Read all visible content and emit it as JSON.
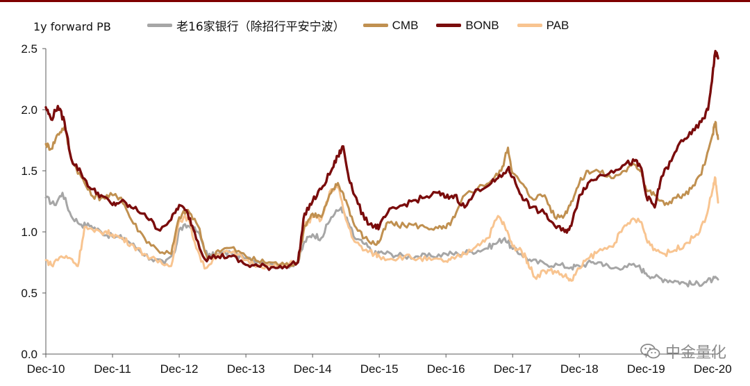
{
  "chart_data": {
    "type": "line",
    "ylabel": "1y forward PB",
    "ylim": [
      0,
      2.5
    ],
    "yticks": [
      "0.0",
      "0.5",
      "1.0",
      "1.5",
      "2.0",
      "2.5"
    ],
    "ytick_values": [
      0,
      0.5,
      1.0,
      1.5,
      2.0,
      2.5
    ],
    "xlim": [
      2010.92,
      2021.0
    ],
    "xticks": [
      "Dec-10",
      "Dec-11",
      "Dec-12",
      "Dec-13",
      "Dec-14",
      "Dec-15",
      "Dec-16",
      "Dec-17",
      "Dec-18",
      "Dec-19",
      "Dec-20"
    ],
    "xtick_values": [
      2010.92,
      2011.92,
      2012.92,
      2013.92,
      2014.92,
      2015.92,
      2016.92,
      2017.92,
      2018.92,
      2019.92,
      2020.92
    ],
    "grid": false,
    "legend_position": "top",
    "series": [
      {
        "name": "老16家银行（除招行平安宁波）",
        "color": "#a6a6a6",
        "points": [
          [
            2010.92,
            1.28
          ],
          [
            2011.05,
            1.22
          ],
          [
            2011.17,
            1.32
          ],
          [
            2011.3,
            1.13
          ],
          [
            2011.45,
            1.06
          ],
          [
            2011.6,
            1.05
          ],
          [
            2011.75,
            1.0
          ],
          [
            2011.92,
            0.96
          ],
          [
            2012.1,
            0.95
          ],
          [
            2012.3,
            0.86
          ],
          [
            2012.5,
            0.78
          ],
          [
            2012.7,
            0.74
          ],
          [
            2012.85,
            0.83
          ],
          [
            2012.92,
            1.02
          ],
          [
            2013.05,
            1.05
          ],
          [
            2013.2,
            1.0
          ],
          [
            2013.35,
            0.8
          ],
          [
            2013.5,
            0.82
          ],
          [
            2013.7,
            0.83
          ],
          [
            2013.92,
            0.78
          ],
          [
            2014.1,
            0.76
          ],
          [
            2014.3,
            0.74
          ],
          [
            2014.5,
            0.72
          ],
          [
            2014.7,
            0.75
          ],
          [
            2014.8,
            0.92
          ],
          [
            2014.92,
            0.98
          ],
          [
            2015.05,
            0.95
          ],
          [
            2015.2,
            1.12
          ],
          [
            2015.35,
            1.2
          ],
          [
            2015.45,
            1.08
          ],
          [
            2015.55,
            0.95
          ],
          [
            2015.7,
            0.9
          ],
          [
            2015.85,
            0.82
          ],
          [
            2015.92,
            0.83
          ],
          [
            2016.1,
            0.82
          ],
          [
            2016.3,
            0.8
          ],
          [
            2016.5,
            0.8
          ],
          [
            2016.7,
            0.8
          ],
          [
            2016.92,
            0.82
          ],
          [
            2017.1,
            0.82
          ],
          [
            2017.3,
            0.84
          ],
          [
            2017.5,
            0.86
          ],
          [
            2017.65,
            0.9
          ],
          [
            2017.8,
            0.95
          ],
          [
            2017.92,
            0.86
          ],
          [
            2018.05,
            0.82
          ],
          [
            2018.2,
            0.76
          ],
          [
            2018.4,
            0.74
          ],
          [
            2018.6,
            0.73
          ],
          [
            2018.8,
            0.71
          ],
          [
            2018.92,
            0.72
          ],
          [
            2019.1,
            0.75
          ],
          [
            2019.25,
            0.75
          ],
          [
            2019.4,
            0.7
          ],
          [
            2019.6,
            0.72
          ],
          [
            2019.8,
            0.72
          ],
          [
            2019.92,
            0.66
          ],
          [
            2020.05,
            0.63
          ],
          [
            2020.2,
            0.61
          ],
          [
            2020.35,
            0.6
          ],
          [
            2020.5,
            0.58
          ],
          [
            2020.65,
            0.57
          ],
          [
            2020.8,
            0.59
          ],
          [
            2020.92,
            0.61
          ],
          [
            2021.0,
            0.61
          ]
        ]
      },
      {
        "name": "CMB",
        "color": "#c09050",
        "points": [
          [
            2010.92,
            1.72
          ],
          [
            2011.0,
            1.68
          ],
          [
            2011.1,
            1.8
          ],
          [
            2011.2,
            1.86
          ],
          [
            2011.3,
            1.6
          ],
          [
            2011.45,
            1.45
          ],
          [
            2011.6,
            1.3
          ],
          [
            2011.75,
            1.28
          ],
          [
            2011.92,
            1.3
          ],
          [
            2012.05,
            1.28
          ],
          [
            2012.2,
            1.1
          ],
          [
            2012.4,
            0.95
          ],
          [
            2012.6,
            0.85
          ],
          [
            2012.8,
            0.82
          ],
          [
            2012.92,
            1.12
          ],
          [
            2013.05,
            1.18
          ],
          [
            2013.2,
            1.05
          ],
          [
            2013.35,
            0.77
          ],
          [
            2013.5,
            0.85
          ],
          [
            2013.7,
            0.87
          ],
          [
            2013.92,
            0.8
          ],
          [
            2014.1,
            0.76
          ],
          [
            2014.3,
            0.75
          ],
          [
            2014.5,
            0.73
          ],
          [
            2014.7,
            0.75
          ],
          [
            2014.8,
            1.05
          ],
          [
            2014.92,
            1.15
          ],
          [
            2015.05,
            1.12
          ],
          [
            2015.2,
            1.32
          ],
          [
            2015.3,
            1.4
          ],
          [
            2015.42,
            1.26
          ],
          [
            2015.55,
            1.05
          ],
          [
            2015.7,
            0.95
          ],
          [
            2015.85,
            0.9
          ],
          [
            2015.92,
            0.92
          ],
          [
            2016.05,
            1.08
          ],
          [
            2016.2,
            1.05
          ],
          [
            2016.4,
            1.06
          ],
          [
            2016.6,
            1.04
          ],
          [
            2016.8,
            1.03
          ],
          [
            2016.92,
            1.03
          ],
          [
            2017.05,
            1.12
          ],
          [
            2017.2,
            1.3
          ],
          [
            2017.4,
            1.36
          ],
          [
            2017.6,
            1.42
          ],
          [
            2017.75,
            1.5
          ],
          [
            2017.85,
            1.69
          ],
          [
            2017.92,
            1.48
          ],
          [
            2018.05,
            1.4
          ],
          [
            2018.2,
            1.28
          ],
          [
            2018.4,
            1.3
          ],
          [
            2018.55,
            1.12
          ],
          [
            2018.7,
            1.14
          ],
          [
            2018.8,
            1.25
          ],
          [
            2018.92,
            1.4
          ],
          [
            2019.05,
            1.5
          ],
          [
            2019.2,
            1.5
          ],
          [
            2019.4,
            1.44
          ],
          [
            2019.6,
            1.5
          ],
          [
            2019.75,
            1.55
          ],
          [
            2019.85,
            1.5
          ],
          [
            2019.92,
            1.35
          ],
          [
            2020.05,
            1.3
          ],
          [
            2020.2,
            1.22
          ],
          [
            2020.35,
            1.28
          ],
          [
            2020.5,
            1.3
          ],
          [
            2020.65,
            1.38
          ],
          [
            2020.8,
            1.55
          ],
          [
            2020.92,
            1.8
          ],
          [
            2020.96,
            1.9
          ],
          [
            2021.0,
            1.76
          ]
        ]
      },
      {
        "name": "BONB",
        "color": "#7a0c0c",
        "points": [
          [
            2010.92,
            2.02
          ],
          [
            2011.0,
            1.92
          ],
          [
            2011.1,
            2.03
          ],
          [
            2011.2,
            1.9
          ],
          [
            2011.3,
            1.6
          ],
          [
            2011.45,
            1.48
          ],
          [
            2011.6,
            1.35
          ],
          [
            2011.75,
            1.3
          ],
          [
            2011.92,
            1.22
          ],
          [
            2012.05,
            1.25
          ],
          [
            2012.2,
            1.2
          ],
          [
            2012.4,
            1.15
          ],
          [
            2012.6,
            1.02
          ],
          [
            2012.8,
            1.1
          ],
          [
            2012.92,
            1.22
          ],
          [
            2013.05,
            1.15
          ],
          [
            2013.15,
            1.0
          ],
          [
            2013.3,
            0.78
          ],
          [
            2013.5,
            0.8
          ],
          [
            2013.7,
            0.8
          ],
          [
            2013.92,
            0.73
          ],
          [
            2014.1,
            0.72
          ],
          [
            2014.3,
            0.71
          ],
          [
            2014.5,
            0.72
          ],
          [
            2014.7,
            0.75
          ],
          [
            2014.8,
            1.15
          ],
          [
            2014.92,
            1.25
          ],
          [
            2015.05,
            1.35
          ],
          [
            2015.2,
            1.5
          ],
          [
            2015.3,
            1.62
          ],
          [
            2015.38,
            1.7
          ],
          [
            2015.45,
            1.48
          ],
          [
            2015.55,
            1.3
          ],
          [
            2015.7,
            1.1
          ],
          [
            2015.85,
            1.05
          ],
          [
            2015.92,
            1.04
          ],
          [
            2016.05,
            1.16
          ],
          [
            2016.2,
            1.2
          ],
          [
            2016.4,
            1.25
          ],
          [
            2016.6,
            1.28
          ],
          [
            2016.8,
            1.32
          ],
          [
            2016.92,
            1.28
          ],
          [
            2017.05,
            1.3
          ],
          [
            2017.2,
            1.2
          ],
          [
            2017.4,
            1.35
          ],
          [
            2017.6,
            1.4
          ],
          [
            2017.75,
            1.45
          ],
          [
            2017.85,
            1.52
          ],
          [
            2017.92,
            1.45
          ],
          [
            2018.05,
            1.3
          ],
          [
            2018.2,
            1.2
          ],
          [
            2018.4,
            1.15
          ],
          [
            2018.55,
            1.05
          ],
          [
            2018.7,
            1.0
          ],
          [
            2018.8,
            1.05
          ],
          [
            2018.92,
            1.3
          ],
          [
            2019.05,
            1.4
          ],
          [
            2019.2,
            1.45
          ],
          [
            2019.4,
            1.5
          ],
          [
            2019.6,
            1.55
          ],
          [
            2019.75,
            1.58
          ],
          [
            2019.85,
            1.52
          ],
          [
            2019.92,
            1.3
          ],
          [
            2020.05,
            1.2
          ],
          [
            2020.15,
            1.45
          ],
          [
            2020.3,
            1.58
          ],
          [
            2020.45,
            1.75
          ],
          [
            2020.6,
            1.8
          ],
          [
            2020.75,
            1.9
          ],
          [
            2020.85,
            2.0
          ],
          [
            2020.92,
            2.3
          ],
          [
            2020.96,
            2.48
          ],
          [
            2021.0,
            2.42
          ]
        ]
      },
      {
        "name": "PAB",
        "color": "#f8c490",
        "points": [
          [
            2010.92,
            0.77
          ],
          [
            2011.0,
            0.73
          ],
          [
            2011.15,
            0.8
          ],
          [
            2011.3,
            0.78
          ],
          [
            2011.4,
            0.72
          ],
          [
            2011.5,
            1.04
          ],
          [
            2011.65,
            1.0
          ],
          [
            2011.8,
            1.0
          ],
          [
            2011.92,
            0.98
          ],
          [
            2012.05,
            0.95
          ],
          [
            2012.2,
            0.9
          ],
          [
            2012.4,
            0.82
          ],
          [
            2012.6,
            0.75
          ],
          [
            2012.8,
            0.72
          ],
          [
            2012.92,
            1.1
          ],
          [
            2013.05,
            1.12
          ],
          [
            2013.15,
            0.92
          ],
          [
            2013.3,
            0.7
          ],
          [
            2013.5,
            0.82
          ],
          [
            2013.7,
            0.83
          ],
          [
            2013.92,
            0.77
          ],
          [
            2014.1,
            0.73
          ],
          [
            2014.3,
            0.72
          ],
          [
            2014.5,
            0.72
          ],
          [
            2014.7,
            0.76
          ],
          [
            2014.8,
            1.05
          ],
          [
            2014.92,
            1.12
          ],
          [
            2015.05,
            1.1
          ],
          [
            2015.2,
            1.35
          ],
          [
            2015.3,
            1.37
          ],
          [
            2015.42,
            1.1
          ],
          [
            2015.55,
            0.92
          ],
          [
            2015.7,
            0.85
          ],
          [
            2015.85,
            0.82
          ],
          [
            2015.92,
            0.8
          ],
          [
            2016.1,
            0.78
          ],
          [
            2016.3,
            0.8
          ],
          [
            2016.5,
            0.78
          ],
          [
            2016.7,
            0.77
          ],
          [
            2016.92,
            0.76
          ],
          [
            2017.05,
            0.78
          ],
          [
            2017.2,
            0.82
          ],
          [
            2017.4,
            0.9
          ],
          [
            2017.55,
            0.95
          ],
          [
            2017.7,
            1.13
          ],
          [
            2017.8,
            1.05
          ],
          [
            2017.92,
            0.88
          ],
          [
            2018.05,
            0.85
          ],
          [
            2018.15,
            0.75
          ],
          [
            2018.25,
            0.63
          ],
          [
            2018.4,
            0.68
          ],
          [
            2018.55,
            0.68
          ],
          [
            2018.7,
            0.64
          ],
          [
            2018.8,
            0.6
          ],
          [
            2018.92,
            0.7
          ],
          [
            2019.05,
            0.78
          ],
          [
            2019.2,
            0.84
          ],
          [
            2019.4,
            0.88
          ],
          [
            2019.55,
            1.0
          ],
          [
            2019.7,
            1.1
          ],
          [
            2019.85,
            1.08
          ],
          [
            2019.92,
            0.95
          ],
          [
            2020.05,
            0.86
          ],
          [
            2020.2,
            0.82
          ],
          [
            2020.35,
            0.85
          ],
          [
            2020.5,
            0.9
          ],
          [
            2020.65,
            0.96
          ],
          [
            2020.8,
            1.08
          ],
          [
            2020.92,
            1.35
          ],
          [
            2020.96,
            1.44
          ],
          [
            2021.0,
            1.24
          ]
        ]
      }
    ]
  },
  "legend": {
    "items": [
      {
        "label": "老16家银行（除招行平安宁波）",
        "color": "#a6a6a6"
      },
      {
        "label": "CMB",
        "color": "#c09050"
      },
      {
        "label": "BONB",
        "color": "#7a0c0c"
      },
      {
        "label": "PAB",
        "color": "#f8c490"
      }
    ]
  },
  "header": {
    "unit_label": "1y forward PB"
  },
  "watermark": {
    "text": "中金量化",
    "icon": "wechat-icon"
  },
  "colors": {
    "top_rule": "#7f0000",
    "axis": "#595959"
  }
}
